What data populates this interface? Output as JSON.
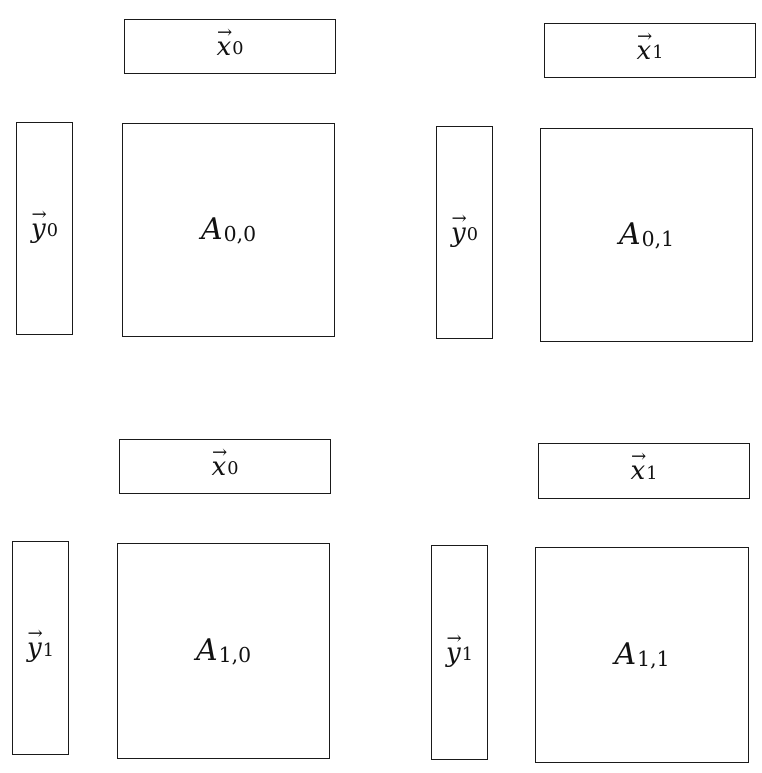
{
  "blocks": [
    {
      "id": "q00",
      "x_base": "x",
      "x_sub": "0",
      "y_base": "y",
      "y_sub": "0",
      "a_base": "A",
      "a_sub": "0,0"
    },
    {
      "id": "q01",
      "x_base": "x",
      "x_sub": "1",
      "y_base": "y",
      "y_sub": "0",
      "a_base": "A",
      "a_sub": "0,1"
    },
    {
      "id": "q10",
      "x_base": "x",
      "x_sub": "0",
      "y_base": "y",
      "y_sub": "1",
      "a_base": "A",
      "a_sub": "1,0"
    },
    {
      "id": "q11",
      "x_base": "x",
      "x_sub": "1",
      "y_base": "y",
      "y_sub": "1",
      "a_base": "A",
      "a_sub": "1,1"
    }
  ],
  "arrow_glyph": "→"
}
